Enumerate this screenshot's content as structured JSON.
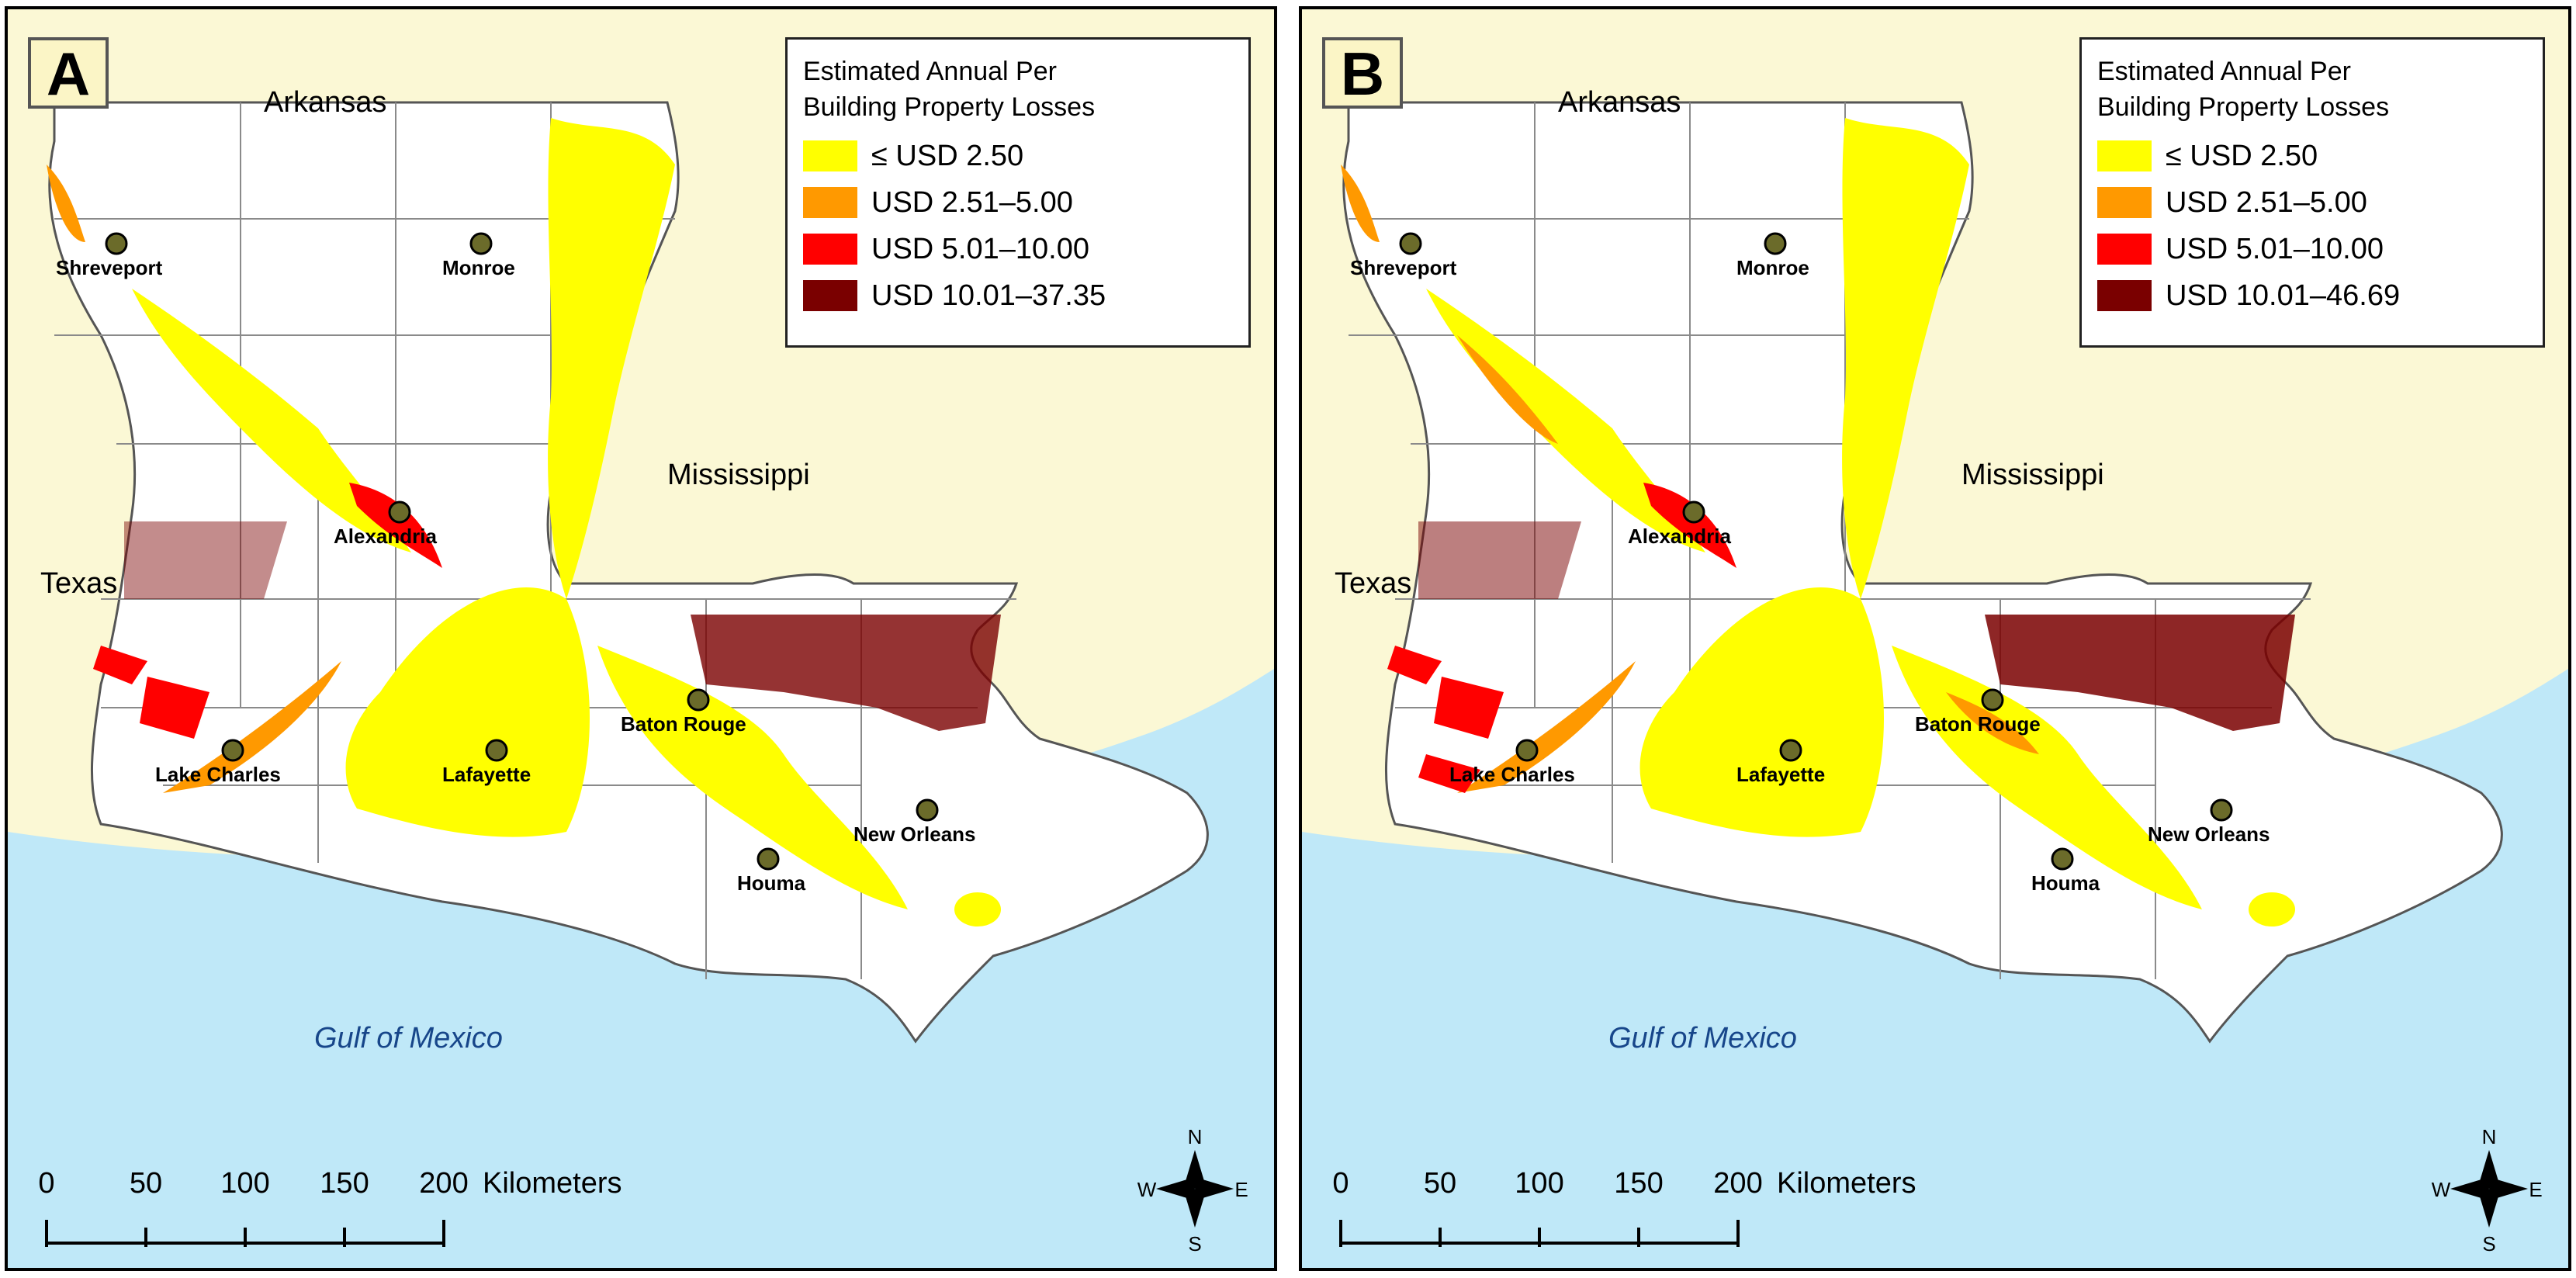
{
  "panels": [
    {
      "letter": "A",
      "legend": {
        "title": "Estimated Annual Per Building Property Losses",
        "title_line1": "Estimated Annual Per",
        "title_line2": "Building Property Losses",
        "classes": [
          {
            "label": "≤ USD 2.50",
            "color": "#ffff00"
          },
          {
            "label": "USD 2.51–5.00",
            "color": "#ff9900"
          },
          {
            "label": "USD 5.01–10.00",
            "color": "#ff0000"
          },
          {
            "label": "USD 10.01–37.35",
            "color": "#7a0000"
          }
        ]
      }
    },
    {
      "letter": "B",
      "legend": {
        "title": "Estimated Annual Per Building Property Losses",
        "title_line1": "Estimated Annual Per",
        "title_line2": "Building Property Losses",
        "classes": [
          {
            "label": "≤ USD 2.50",
            "color": "#ffff00"
          },
          {
            "label": "USD 2.51–5.00",
            "color": "#ff9900"
          },
          {
            "label": "USD 5.01–10.00",
            "color": "#ff0000"
          },
          {
            "label": "USD 10.01–46.69",
            "color": "#7a0000"
          }
        ]
      }
    }
  ],
  "regions": {
    "arkansas": "Arkansas",
    "mississippi": "Mississippi",
    "texas": "Texas",
    "gulf": "Gulf of Mexico"
  },
  "cities": [
    "Shreveport",
    "Monroe",
    "Alexandria",
    "Lake Charles",
    "Lafayette",
    "Baton Rouge",
    "New Orleans",
    "Houma"
  ],
  "scale_bar": {
    "ticks": [
      "0",
      "50",
      "100",
      "150",
      "200"
    ],
    "unit": "Kilometers"
  },
  "compass": {
    "n": "N",
    "s": "S",
    "e": "E",
    "w": "W"
  },
  "colors": {
    "background_land": "#fbf8d5",
    "water": "#bfe8f8",
    "state": "#ffffff",
    "parish_border": "#7a7a7a",
    "city_marker": "#6b6b2a"
  }
}
